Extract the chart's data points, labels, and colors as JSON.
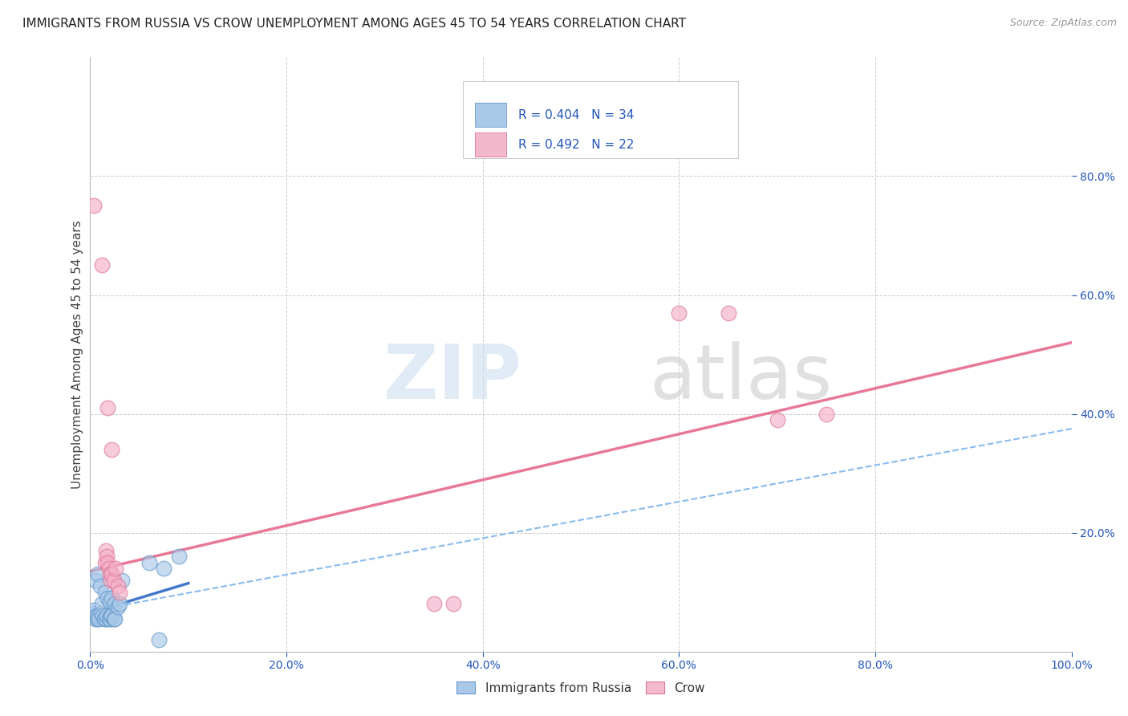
{
  "title": "IMMIGRANTS FROM RUSSIA VS CROW UNEMPLOYMENT AMONG AGES 45 TO 54 YEARS CORRELATION CHART",
  "source": "Source: ZipAtlas.com",
  "ylabel": "Unemployment Among Ages 45 to 54 years",
  "xlim": [
    0,
    1.0
  ],
  "ylim": [
    0,
    1.0
  ],
  "xtick_labels": [
    "0.0%",
    "20.0%",
    "40.0%",
    "60.0%",
    "80.0%",
    "100.0%"
  ],
  "xtick_vals": [
    0.0,
    0.2,
    0.4,
    0.6,
    0.8,
    1.0
  ],
  "ytick_vals": [
    0.2,
    0.4,
    0.6,
    0.8
  ],
  "ytick_labels": [
    "20.0%",
    "40.0%",
    "60.0%",
    "80.0%"
  ],
  "blue_scatter": [
    [
      0.003,
      0.065
    ],
    [
      0.004,
      0.07
    ],
    [
      0.005,
      0.12
    ],
    [
      0.005,
      0.055
    ],
    [
      0.006,
      0.06
    ],
    [
      0.007,
      0.055
    ],
    [
      0.008,
      0.13
    ],
    [
      0.008,
      0.06
    ],
    [
      0.009,
      0.055
    ],
    [
      0.01,
      0.11
    ],
    [
      0.011,
      0.065
    ],
    [
      0.012,
      0.08
    ],
    [
      0.013,
      0.06
    ],
    [
      0.014,
      0.055
    ],
    [
      0.015,
      0.1
    ],
    [
      0.016,
      0.055
    ],
    [
      0.017,
      0.06
    ],
    [
      0.018,
      0.09
    ],
    [
      0.019,
      0.055
    ],
    [
      0.02,
      0.085
    ],
    [
      0.02,
      0.055
    ],
    [
      0.021,
      0.06
    ],
    [
      0.022,
      0.09
    ],
    [
      0.022,
      0.06
    ],
    [
      0.024,
      0.055
    ],
    [
      0.025,
      0.08
    ],
    [
      0.025,
      0.055
    ],
    [
      0.028,
      0.075
    ],
    [
      0.03,
      0.08
    ],
    [
      0.032,
      0.12
    ],
    [
      0.06,
      0.15
    ],
    [
      0.075,
      0.14
    ],
    [
      0.09,
      0.16
    ],
    [
      0.07,
      0.02
    ]
  ],
  "pink_scatter": [
    [
      0.004,
      0.75
    ],
    [
      0.012,
      0.65
    ],
    [
      0.015,
      0.15
    ],
    [
      0.016,
      0.17
    ],
    [
      0.017,
      0.16
    ],
    [
      0.018,
      0.15
    ],
    [
      0.019,
      0.14
    ],
    [
      0.02,
      0.13
    ],
    [
      0.021,
      0.12
    ],
    [
      0.022,
      0.13
    ],
    [
      0.024,
      0.12
    ],
    [
      0.026,
      0.14
    ],
    [
      0.028,
      0.11
    ],
    [
      0.03,
      0.1
    ],
    [
      0.018,
      0.41
    ],
    [
      0.022,
      0.34
    ],
    [
      0.35,
      0.08
    ],
    [
      0.37,
      0.08
    ],
    [
      0.6,
      0.57
    ],
    [
      0.65,
      0.57
    ],
    [
      0.7,
      0.39
    ],
    [
      0.75,
      0.4
    ]
  ],
  "blue_solid_line": [
    [
      0.0,
      0.065
    ],
    [
      0.1,
      0.115
    ]
  ],
  "blue_dashed_line": [
    [
      0.0,
      0.068
    ],
    [
      1.0,
      0.375
    ]
  ],
  "pink_solid_line": [
    [
      0.0,
      0.135
    ],
    [
      1.0,
      0.52
    ]
  ],
  "blue_scatter_color": "#a8c8e8",
  "blue_scatter_edge": "#6699cc",
  "pink_scatter_color": "#f4b0c8",
  "pink_scatter_edge": "#e07898",
  "blue_solid_color": "#4477cc",
  "blue_dashed_color": "#88bbee",
  "pink_solid_color": "#e87898",
  "legend_blue_color": "#aac8e8",
  "legend_pink_color": "#f4b8cc",
  "legend_r1": "R = 0.404",
  "legend_n1": "N = 34",
  "legend_r2": "R = 0.492",
  "legend_n2": "N = 22",
  "legend_text_color": "#2255bb",
  "bottom_legend_blue": "Immigrants from Russia",
  "bottom_legend_pink": "Crow",
  "title_fontsize": 11,
  "tick_fontsize": 10,
  "ylabel_fontsize": 11,
  "source_text": "Source: ZipAtlas.com",
  "watermark_zip_color": "#c8dcf0",
  "watermark_atlas_color": "#c8c8cc",
  "background_color": "#ffffff",
  "grid_color": "#cccccc"
}
